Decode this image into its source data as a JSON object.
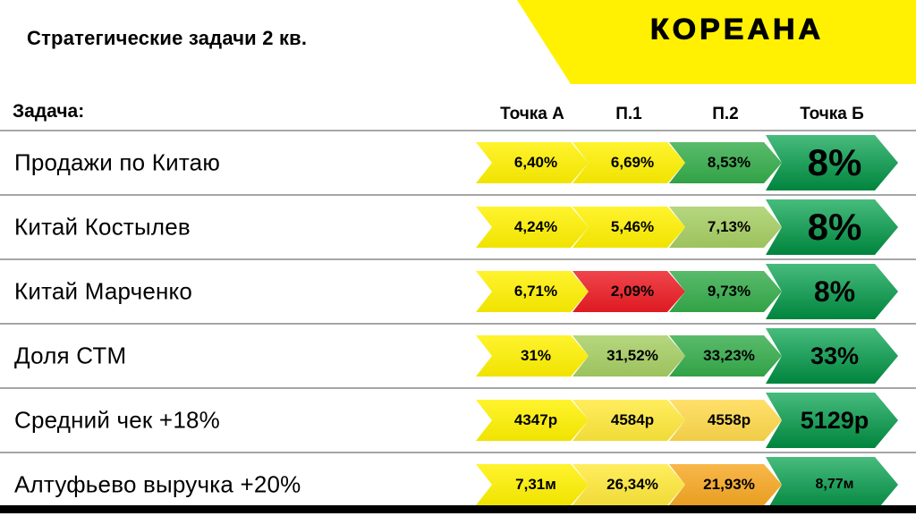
{
  "slide": {
    "title": "Стратегические задачи 2 кв.",
    "logo_text": "КОРЕАНА"
  },
  "colors": {
    "yellow": "#FFF101",
    "gold": "#FFD94B",
    "light_green": "#A6CE63",
    "green": "#35AC4B",
    "dark_green": "#00A14B",
    "red": "#EC1C24",
    "orange": "#F7A823",
    "banner": "#FFF101"
  },
  "table": {
    "task_header": "Задача:",
    "columns": [
      "Точка А",
      "П.1",
      "П.2",
      "Точка Б"
    ],
    "rows": [
      {
        "label": "Продажи по Китаю",
        "cells": [
          {
            "text": "6,40%",
            "bg": "#FFF101"
          },
          {
            "text": "6,69%",
            "bg": "#FFF101"
          },
          {
            "text": "8,53%",
            "bg": "#35AC4B"
          }
        ],
        "target": {
          "text": "8%",
          "bg": "#00A14B"
        }
      },
      {
        "label": "Китай Костылев",
        "cells": [
          {
            "text": "4,24%",
            "bg": "#FFF101"
          },
          {
            "text": "5,46%",
            "bg": "#FFF101"
          },
          {
            "text": "7,13%",
            "bg": "#A6CE63"
          }
        ],
        "target": {
          "text": "8%",
          "bg": "#00A14B"
        }
      },
      {
        "label": "Китай Марченко",
        "cells": [
          {
            "text": "6,71%",
            "bg": "#FFF101"
          },
          {
            "text": "2,09%",
            "bg": "#EC1C24"
          },
          {
            "text": "9,73%",
            "bg": "#35AC4B"
          }
        ],
        "target": {
          "text": "8%",
          "bg": "#00A14B"
        }
      },
      {
        "label": "Доля СТМ",
        "cells": [
          {
            "text": "31%",
            "bg": "#FFF101"
          },
          {
            "text": "31,52%",
            "bg": "#A6CE63"
          },
          {
            "text": "33,23%",
            "bg": "#35AC4B"
          }
        ],
        "target": {
          "text": "33%",
          "bg": "#00A14B"
        }
      },
      {
        "label": "Средний чек +18%",
        "cells": [
          {
            "text": "4347р",
            "bg": "#FFF101"
          },
          {
            "text": "4584р",
            "bg": "#FFE93B"
          },
          {
            "text": "4558р",
            "bg": "#FFD94B"
          }
        ],
        "target": {
          "text": "5129р",
          "bg": "#00A14B"
        }
      },
      {
        "label": "Алтуфьево выручка +20%",
        "cells": [
          {
            "text": "7,31м",
            "bg": "#FFF101"
          },
          {
            "text": "26,34%",
            "bg": "#FFE93B"
          },
          {
            "text": "21,93%",
            "bg": "#F7A823"
          }
        ],
        "target": {
          "text": "8,77м",
          "bg": "#00A14B"
        }
      }
    ]
  }
}
